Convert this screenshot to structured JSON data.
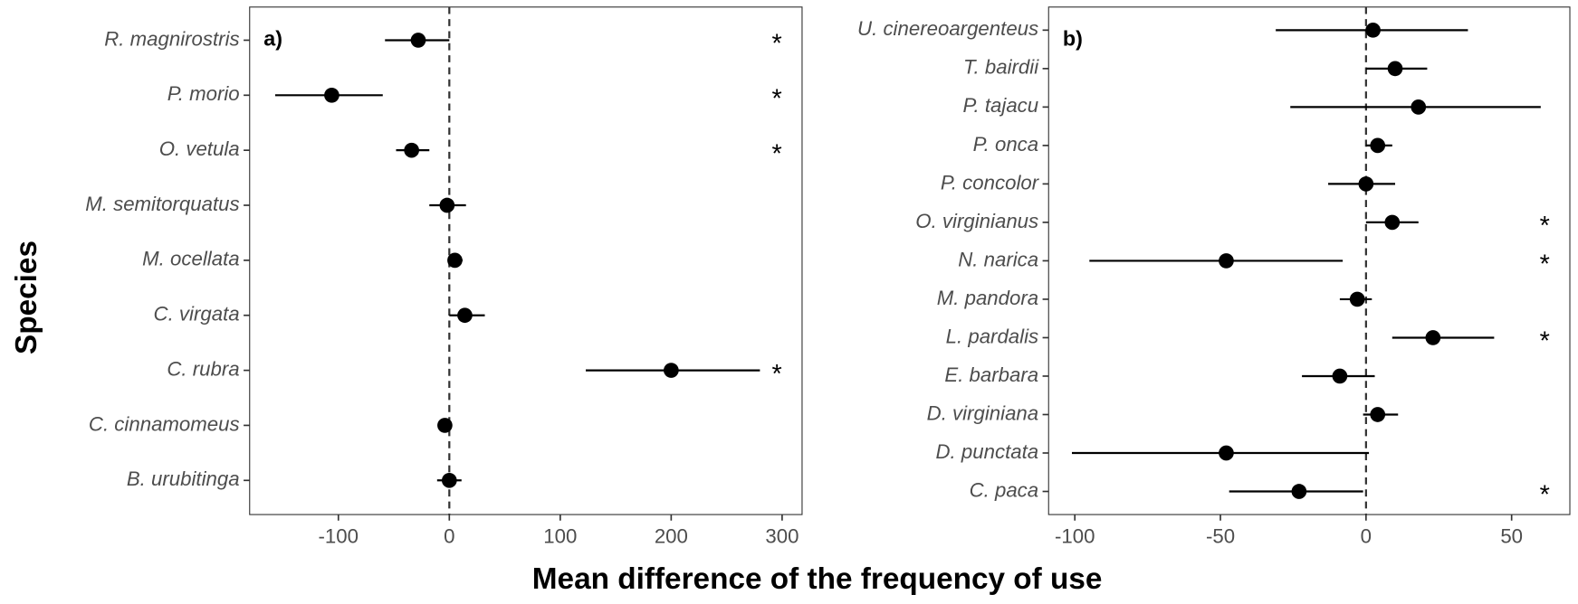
{
  "x_label": "Mean difference of the frequency of use",
  "y_label": "Species",
  "chart_data": [
    {
      "type": "forest",
      "panel_label": "a)",
      "categories": [
        "R. magnirostris",
        "P. morio",
        "O. vetula",
        "M. semitorquatus",
        "M. ocellata",
        "C. virgata",
        "C. rubra",
        "C. cinnamomeus",
        "B. urubitinga"
      ],
      "values": [
        -28,
        -106,
        -34,
        -2,
        5,
        14,
        200,
        -4,
        0
      ],
      "lower": [
        -58,
        -157,
        -48,
        -18,
        0,
        0,
        123,
        -8,
        -11
      ],
      "upper": [
        0,
        -60,
        -18,
        15,
        12,
        32,
        280,
        0,
        11
      ],
      "significance": [
        "*",
        "*",
        "*",
        null,
        null,
        null,
        "*",
        null,
        null
      ],
      "color": "#000000",
      "reference_line": 0,
      "xlim": [
        -180,
        318
      ],
      "xticks": [
        -100,
        0,
        100,
        200,
        300
      ]
    },
    {
      "type": "forest",
      "panel_label": "b)",
      "categories": [
        "U. cinereoargenteus",
        "T. bairdii",
        "P. tajacu",
        "P. onca",
        "P. concolor",
        "O. virginianus",
        "N. narica",
        "M. pandora",
        "L. pardalis",
        "E. barbara",
        "D. virginiana",
        "D. punctata",
        "C. paca"
      ],
      "values": [
        2.4,
        10,
        18,
        4,
        0,
        9,
        -48,
        -3,
        23,
        -9,
        4,
        -48,
        -23
      ],
      "lower": [
        -31,
        0,
        -26,
        0,
        -13,
        0,
        -95,
        -9,
        9,
        -22,
        -1,
        -101,
        -47
      ],
      "upper": [
        35,
        21,
        60,
        9,
        10,
        18,
        -8,
        2,
        44,
        3,
        11,
        1,
        -1
      ],
      "significance": [
        null,
        null,
        null,
        null,
        null,
        "*",
        "*",
        null,
        "*",
        null,
        null,
        null,
        "*"
      ],
      "color": "#000000",
      "reference_line": 0,
      "xlim": [
        -109,
        70
      ],
      "xticks": [
        -100,
        -50,
        0,
        50
      ]
    }
  ]
}
